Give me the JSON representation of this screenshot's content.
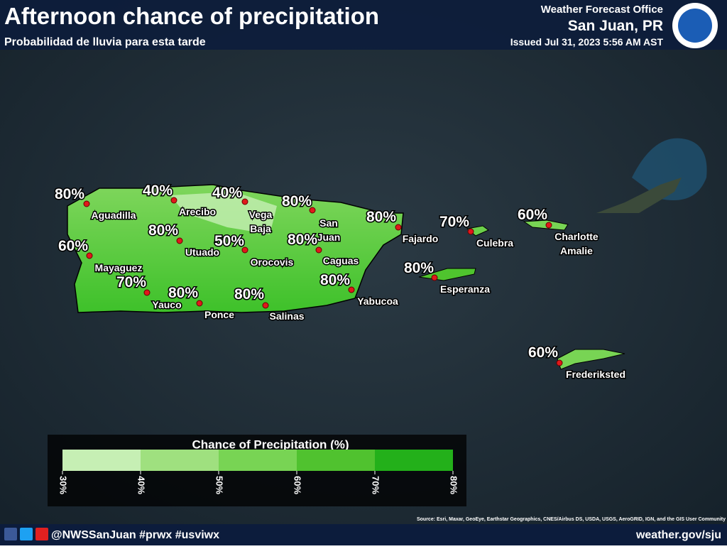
{
  "header": {
    "title": "Afternoon chance of precipitation",
    "subtitle": "Probabilidad de lluvia para esta tarde",
    "office": "Weather Forecast Office",
    "location": "San Juan, PR",
    "issued": "Issued Jul 31, 2023 5:56 AM AST"
  },
  "locations": [
    {
      "name": [
        "Aguadilla"
      ],
      "chance": "80%"
    },
    {
      "name": [
        "Arecibo"
      ],
      "chance": "40%"
    },
    {
      "name": [
        "Vega",
        "Baja"
      ],
      "chance": "40%"
    },
    {
      "name": [
        "San",
        "Juan"
      ],
      "chance": "80%"
    },
    {
      "name": [
        "Fajardo"
      ],
      "chance": "80%"
    },
    {
      "name": [
        "Culebra"
      ],
      "chance": "70%"
    },
    {
      "name": [
        "Charlotte",
        "Amalie"
      ],
      "chance": "60%"
    },
    {
      "name": [
        "Mayaguez"
      ],
      "chance": "60%"
    },
    {
      "name": [
        "Utuado"
      ],
      "chance": "80%"
    },
    {
      "name": [
        "Orocovis"
      ],
      "chance": "50%"
    },
    {
      "name": [
        "Caguas"
      ],
      "chance": "80%"
    },
    {
      "name": [
        "Esperanza"
      ],
      "chance": "80%"
    },
    {
      "name": [
        "Yauco"
      ],
      "chance": "70%"
    },
    {
      "name": [
        "Ponce"
      ],
      "chance": "80%"
    },
    {
      "name": [
        "Salinas"
      ],
      "chance": "80%"
    },
    {
      "name": [
        "Yabucoa"
      ],
      "chance": "80%"
    },
    {
      "name": [
        "Frederiksted"
      ],
      "chance": "60%"
    }
  ],
  "legend": {
    "title": "Chance of Precipitation (%)",
    "ticks": [
      "30%",
      "40%",
      "50%",
      "60%",
      "70%",
      "80%"
    ],
    "colors": [
      "#c6efb4",
      "#9fe07f",
      "#78d454",
      "#50c22f",
      "#23b01a"
    ]
  },
  "footer": {
    "social": "@NWSSanJuan #prwx #usviwx",
    "url": "weather.gov/sju",
    "source": "Source: Esri, Maxar, GeoEye, Earthstar Geographics, CNES/Airbus DS, USDA, USGS, AeroGRID, IGN, and the GIS User Community"
  }
}
